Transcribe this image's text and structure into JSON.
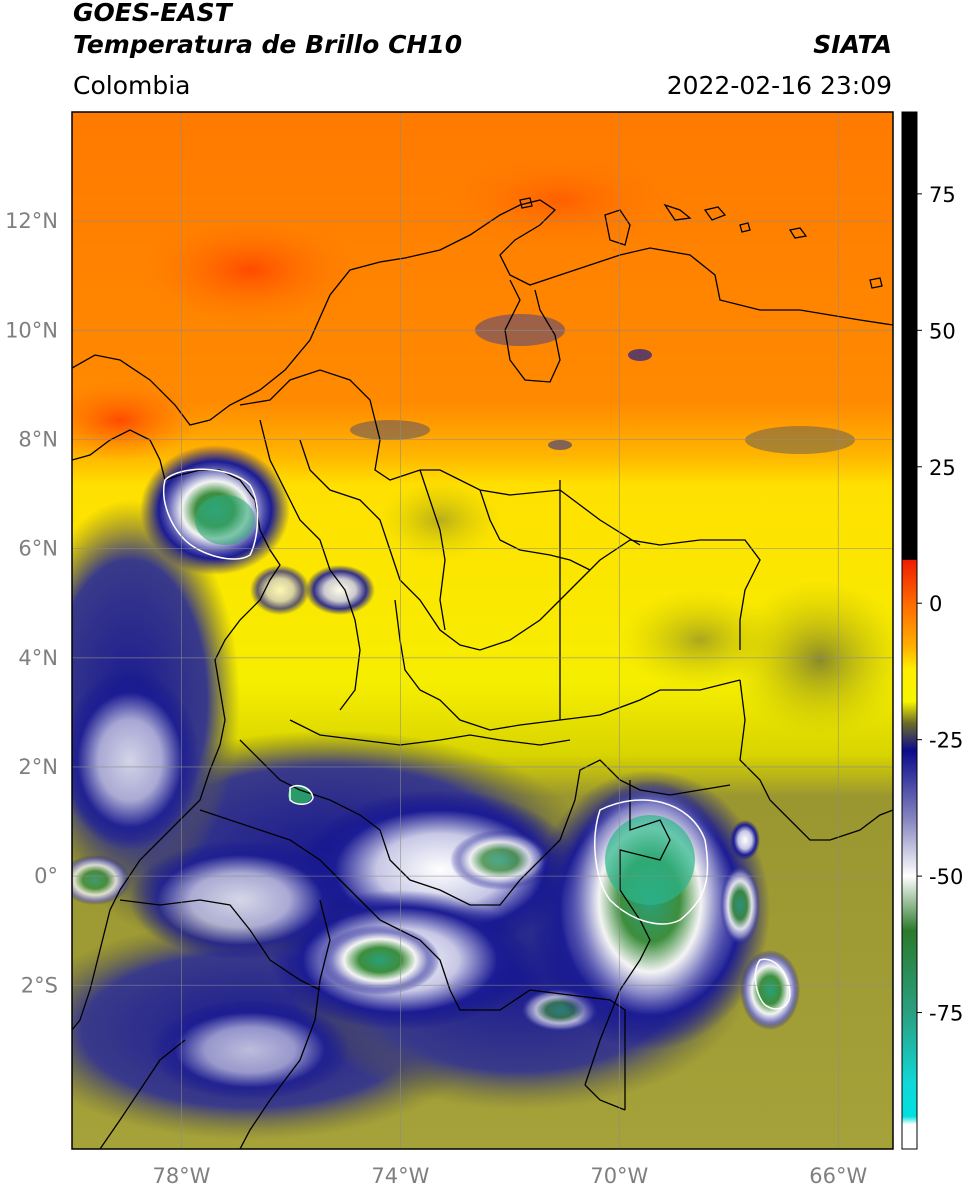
{
  "header": {
    "satellite": "GOES-EAST",
    "product": "Temperatura de Brillo CH10",
    "region": "Colombia",
    "agency": "SIATA",
    "datetime": "2022-02-16 23:09"
  },
  "map": {
    "lon_range": [
      -80,
      -65
    ],
    "lat_range": [
      -5,
      14
    ],
    "lon_ticks": [
      {
        "value": -78,
        "label": "78°W"
      },
      {
        "value": -74,
        "label": "74°W"
      },
      {
        "value": -70,
        "label": "70°W"
      },
      {
        "value": -66,
        "label": "66°W"
      }
    ],
    "lat_ticks": [
      {
        "value": 12,
        "label": "12°N"
      },
      {
        "value": 10,
        "label": "10°N"
      },
      {
        "value": 8,
        "label": "8°N"
      },
      {
        "value": 6,
        "label": "6°N"
      },
      {
        "value": 4,
        "label": "4°N"
      },
      {
        "value": 2,
        "label": "2°N"
      },
      {
        "value": 0,
        "label": "0°"
      },
      {
        "value": -2,
        "label": "2°S"
      }
    ],
    "grid": true
  },
  "colorbar": {
    "range": [
      -100,
      90
    ],
    "ticks": [
      {
        "value": 75,
        "label": "75"
      },
      {
        "value": 50,
        "label": "50"
      },
      {
        "value": 25,
        "label": "25"
      },
      {
        "value": 0,
        "label": "0"
      },
      {
        "value": -25,
        "label": "-25"
      },
      {
        "value": -50,
        "label": "-50"
      },
      {
        "value": -75,
        "label": "-75"
      }
    ],
    "stops": [
      {
        "value": 90,
        "color": "#000000"
      },
      {
        "value": 8,
        "color": "#000000"
      },
      {
        "value": 7.9,
        "color": "#ee1c00"
      },
      {
        "value": 0,
        "color": "#ff6a00"
      },
      {
        "value": -8,
        "color": "#ffb000"
      },
      {
        "value": -12,
        "color": "#ffee00"
      },
      {
        "value": -18,
        "color": "#f6f600"
      },
      {
        "value": -22,
        "color": "#6b6b2a"
      },
      {
        "value": -27,
        "color": "#0b0b8c"
      },
      {
        "value": -40,
        "color": "#8a8ac2"
      },
      {
        "value": -50,
        "color": "#ffffff"
      },
      {
        "value": -60,
        "color": "#2b7a2b"
      },
      {
        "value": -75,
        "color": "#2aa080"
      },
      {
        "value": -88,
        "color": "#10d8d8"
      },
      {
        "value": -94,
        "color": "#00e0e0"
      },
      {
        "value": -95.5,
        "color": "#ffffff"
      },
      {
        "value": -100,
        "color": "#ffffff"
      }
    ]
  }
}
